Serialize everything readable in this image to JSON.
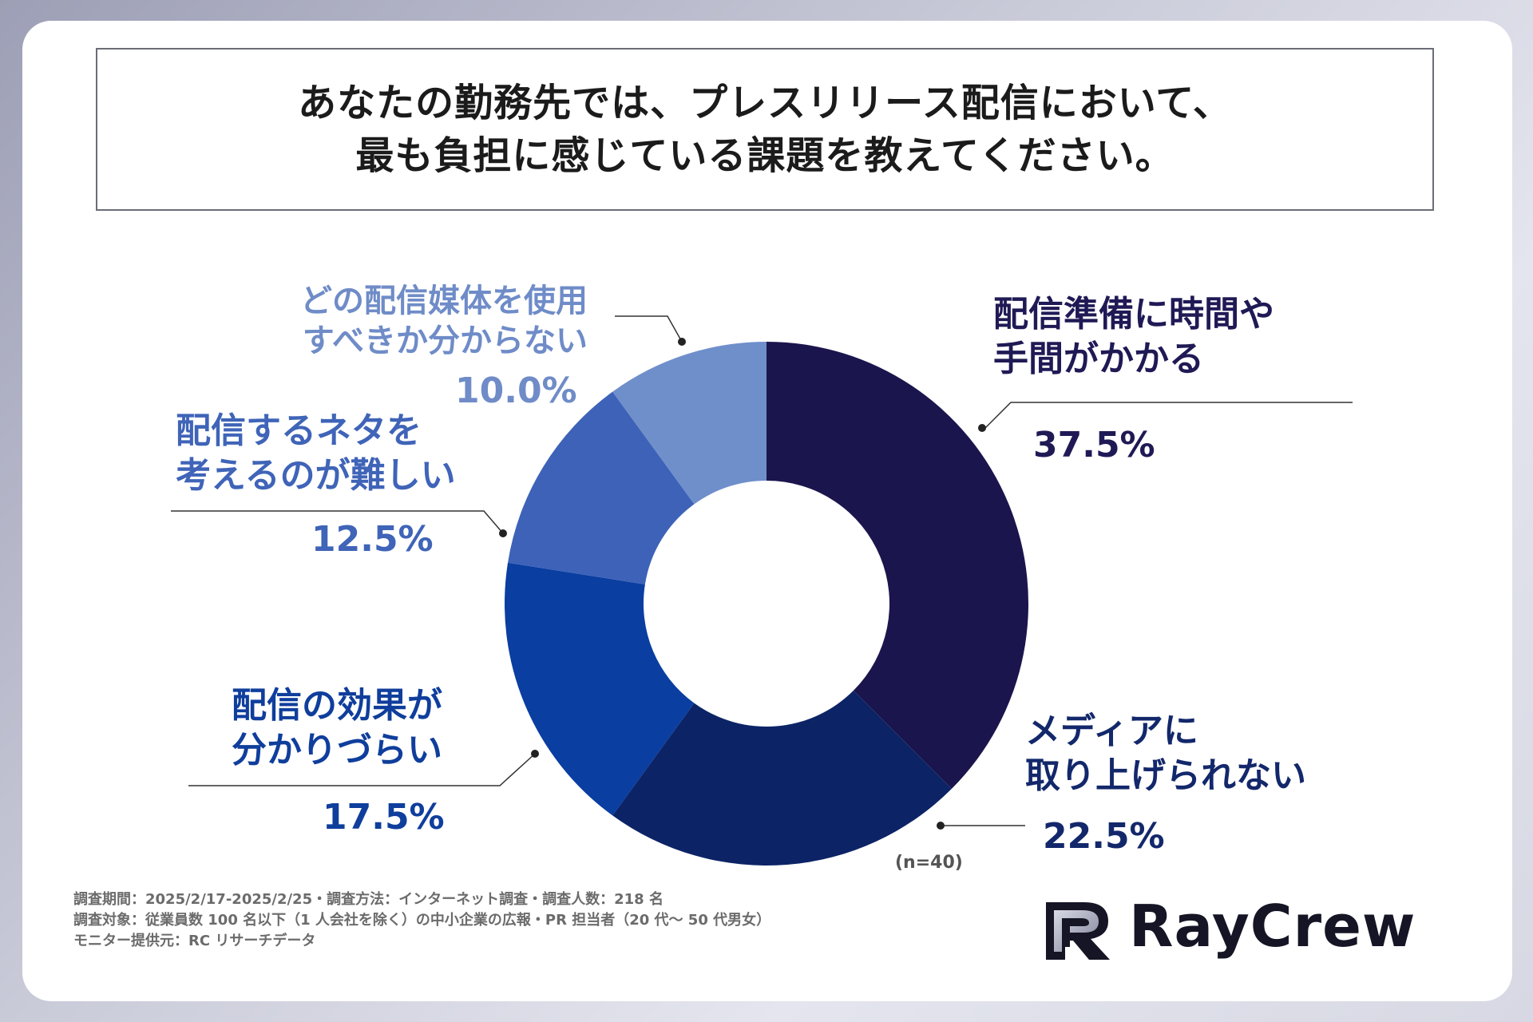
{
  "title": {
    "line1": "あなたの勤務先では、プレスリリース配信において、",
    "line2": "最も負担に感じている課題を教えてください。"
  },
  "chart_data": {
    "type": "pie",
    "variant": "donut",
    "n_note": "(n=40)",
    "slices": [
      {
        "label_line1": "配信準備に時間や",
        "label_line2": "手間がかかる",
        "value": 37.5,
        "value_label": "37.5%",
        "color": "#1b154d",
        "text_color": "#1f1a55"
      },
      {
        "label_line1": "メディアに",
        "label_line2": "取り上げられない",
        "value": 22.5,
        "value_label": "22.5%",
        "color": "#0c2466",
        "text_color": "#13286b"
      },
      {
        "label_line1": "配信の効果が",
        "label_line2": "分かりづらい",
        "value": 17.5,
        "value_label": "17.5%",
        "color": "#0a3ea1",
        "text_color": "#0f3e9c"
      },
      {
        "label_line1": "配信するネタを",
        "label_line2": "考えるのが難しい",
        "value": 12.5,
        "value_label": "12.5%",
        "color": "#3d62b8",
        "text_color": "#3f64b8"
      },
      {
        "label_line1": "どの配信媒体を使用",
        "label_line2": "すべきか分からない",
        "value": 10.0,
        "value_label": "10.0%",
        "color": "#6f8fcb",
        "text_color": "#6f8cc8"
      }
    ]
  },
  "footer": {
    "line1": "調査期間：2025/2/17-2025/2/25・調査方法：インターネット調査・調査人数：218 名",
    "line2": "調査対象：従業員数 100 名以下（1 人会社を除く）の中小企業の広報・PR 担当者（20 代〜 50 代男女）",
    "line3": "モニター提供元：RC リサーチデータ"
  },
  "logo": {
    "text": "RayCrew"
  }
}
